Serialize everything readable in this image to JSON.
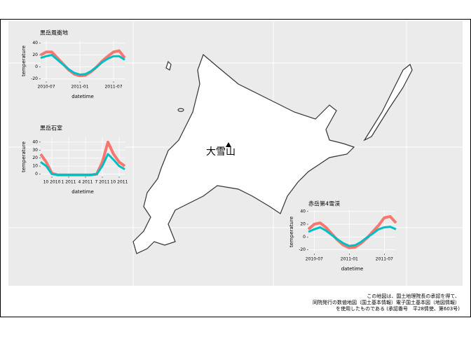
{
  "map": {
    "label": "大雪山",
    "credit": [
      "この地図は、国土地理院長の承認を得て、",
      "同院発行の数値地図（国土基本情報）電子国土基本図（地図情報）",
      "を使用したものである (承認番号　平28情使、第603号)"
    ]
  },
  "chart_data": [
    {
      "type": "line",
      "title": "黒岳風衝地",
      "x_label": "datetime",
      "y_label": "temperature",
      "x": [
        "2010-06",
        "2010-07",
        "2010-08",
        "2010-09",
        "2010-10",
        "2010-11",
        "2010-12",
        "2011-01",
        "2011-02",
        "2011-03",
        "2011-04",
        "2011-05",
        "2011-06",
        "2011-07",
        "2011-08",
        "2011-09"
      ],
      "xlim": [
        "2010-06",
        "2011-09"
      ],
      "xticks": [
        "2010-07",
        "2011-01",
        "2011-07"
      ],
      "ylim": [
        -24,
        44
      ],
      "yticks": [
        -20,
        0,
        20,
        40
      ],
      "series": [
        {
          "color": "#f8766d",
          "values": [
            20,
            25,
            25,
            15,
            5,
            -5,
            -12,
            -15,
            -14,
            -8,
            0,
            10,
            18,
            25,
            27,
            15
          ]
        },
        {
          "color": "#00bfc4",
          "values": [
            15,
            18,
            20,
            12,
            4,
            -4,
            -10,
            -13,
            -12,
            -7,
            0,
            8,
            14,
            18,
            18,
            12
          ]
        }
      ]
    },
    {
      "type": "line",
      "title": "黒岳石室",
      "x_label": "datetime",
      "y_label": "temperature",
      "x": [
        "2010-08",
        "2010-09",
        "2010-10",
        "2010-11",
        "2010-12",
        "2011-01",
        "2011-02",
        "2011-03",
        "2011-04",
        "2011-05",
        "2011-06",
        "2011-07",
        "2011-08",
        "2011-09",
        "2011-10",
        "2011-11"
      ],
      "xlim": [
        "2010-08",
        "2011-11"
      ],
      "xticks": [
        {
          "value": "2010-10",
          "label": "10 2010"
        },
        {
          "value": "2011-01",
          "label": "1 2011"
        },
        {
          "value": "2011-04",
          "label": "4 2011"
        },
        {
          "value": "2011-07",
          "label": "7 2011"
        },
        {
          "value": "2011-10",
          "label": "10 2011"
        }
      ],
      "ylim": [
        -3,
        46
      ],
      "yticks": [
        0,
        10,
        20,
        30,
        40
      ],
      "series": [
        {
          "color": "#f8766d",
          "values": [
            25,
            15,
            1,
            -1,
            -1,
            -1,
            -1,
            -1,
            -1,
            -1,
            0,
            15,
            40,
            25,
            15,
            10
          ]
        },
        {
          "color": "#00bfc4",
          "values": [
            15,
            10,
            0,
            -1,
            -1,
            -1,
            -1,
            -1,
            -1,
            -1,
            0,
            10,
            25,
            18,
            10,
            6
          ]
        }
      ]
    },
    {
      "type": "line",
      "title": "赤岳第4雪渓",
      "x_label": "datetime",
      "y_label": "temperature",
      "x": [
        "2010-06",
        "2010-07",
        "2010-08",
        "2010-09",
        "2010-10",
        "2010-11",
        "2010-12",
        "2011-01",
        "2011-02",
        "2011-03",
        "2011-04",
        "2011-05",
        "2011-06",
        "2011-07",
        "2011-08",
        "2011-09"
      ],
      "xlim": [
        "2010-06",
        "2011-09"
      ],
      "xticks": [
        "2010-07",
        "2011-01",
        "2011-07"
      ],
      "ylim": [
        -26,
        42
      ],
      "yticks": [
        -20,
        0,
        20,
        40
      ],
      "series": [
        {
          "color": "#f8766d",
          "values": [
            12,
            20,
            22,
            15,
            5,
            -5,
            -13,
            -17,
            -16,
            -10,
            -2,
            8,
            18,
            30,
            32,
            22
          ]
        },
        {
          "color": "#00bfc4",
          "values": [
            8,
            12,
            15,
            10,
            3,
            -4,
            -10,
            -14,
            -13,
            -8,
            -1,
            5,
            12,
            15,
            16,
            12
          ]
        }
      ]
    }
  ]
}
